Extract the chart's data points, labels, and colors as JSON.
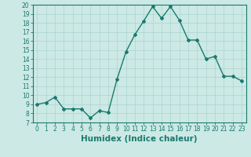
{
  "x": [
    0,
    1,
    2,
    3,
    4,
    5,
    6,
    7,
    8,
    9,
    10,
    11,
    12,
    13,
    14,
    15,
    16,
    17,
    18,
    19,
    20,
    21,
    22,
    23
  ],
  "y": [
    9.0,
    9.2,
    9.8,
    8.5,
    8.5,
    8.5,
    7.5,
    8.3,
    8.1,
    11.8,
    14.8,
    16.7,
    18.2,
    19.8,
    18.5,
    19.8,
    18.3,
    16.1,
    16.1,
    14.0,
    14.3,
    12.1,
    12.1,
    11.6
  ],
  "xlabel": "Humidex (Indice chaleur)",
  "ylim": [
    7,
    20
  ],
  "yticks": [
    7,
    8,
    9,
    10,
    11,
    12,
    13,
    14,
    15,
    16,
    17,
    18,
    19,
    20
  ],
  "xticks": [
    0,
    1,
    2,
    3,
    4,
    5,
    6,
    7,
    8,
    9,
    10,
    11,
    12,
    13,
    14,
    15,
    16,
    17,
    18,
    19,
    20,
    21,
    22,
    23
  ],
  "line_color": "#1a7a6e",
  "marker": "D",
  "marker_size": 2.0,
  "line_width": 1.0,
  "bg_color": "#cce9e5",
  "grid_color": "#b0d8d3",
  "tick_label_fontsize": 5.5,
  "xlabel_fontsize": 7.5,
  "xlim": [
    -0.5,
    23.5
  ]
}
